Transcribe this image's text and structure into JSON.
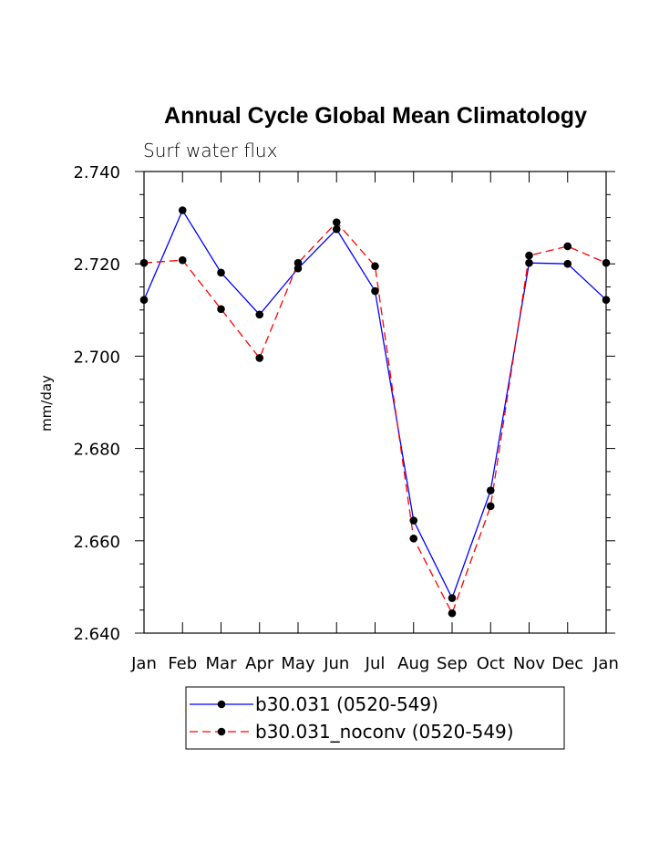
{
  "chart_data": {
    "type": "line",
    "title": "Annual Cycle Global Mean Climatology",
    "subtitle": "Surf water flux",
    "xlabel": "",
    "ylabel": "mm/day",
    "categories": [
      "Jan",
      "Feb",
      "Mar",
      "Apr",
      "May",
      "Jun",
      "Jul",
      "Aug",
      "Sep",
      "Oct",
      "Nov",
      "Dec",
      "Jan"
    ],
    "ylim": [
      2.64,
      2.74
    ],
    "yticks": [
      "2.640",
      "2.660",
      "2.680",
      "2.700",
      "2.720",
      "2.740"
    ],
    "ytick_values": [
      2.64,
      2.66,
      2.68,
      2.7,
      2.72,
      2.74
    ],
    "grid": false,
    "legend_position": "bottom",
    "series": [
      {
        "name": "b30.031 (0520-549)",
        "color": "#0000ff",
        "dash": "solid",
        "marker": "circle",
        "values": [
          2.7122,
          2.7316,
          2.7181,
          2.709,
          2.719,
          2.7275,
          2.7141,
          2.6644,
          2.6476,
          2.6709,
          2.7202,
          2.72,
          2.7122
        ]
      },
      {
        "name": "b30.031_noconv (0520-549)",
        "color": "#ff0000",
        "dash": "dashed",
        "marker": "circle",
        "values": [
          2.7202,
          2.7208,
          2.7102,
          2.6996,
          2.7202,
          2.729,
          2.7195,
          2.6605,
          2.6443,
          2.6675,
          2.7218,
          2.7238,
          2.7202
        ]
      }
    ]
  }
}
